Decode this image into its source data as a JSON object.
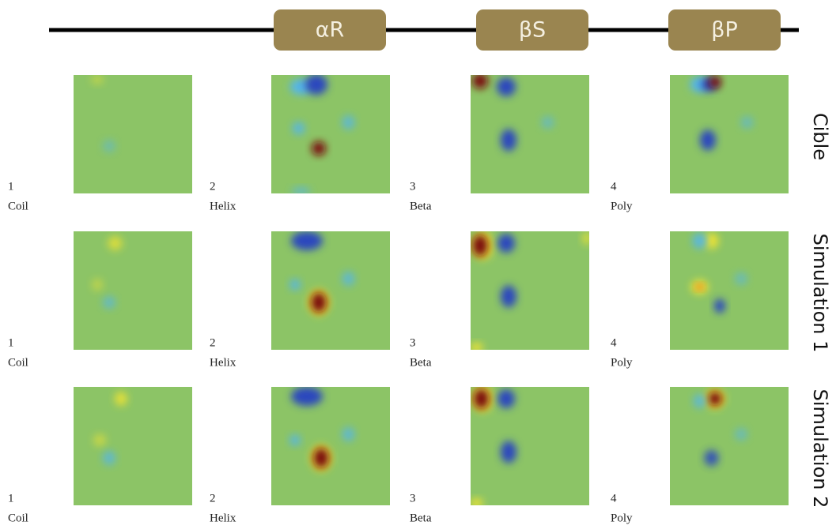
{
  "header": {
    "labels": [
      "αR",
      "βS",
      "βP"
    ]
  },
  "rows": [
    {
      "label": "Cible",
      "panels": [
        {
          "number": 1,
          "name": "Coil"
        },
        {
          "number": 2,
          "name": "Helix"
        },
        {
          "number": 3,
          "name": "Beta"
        },
        {
          "number": 4,
          "name": "Poly"
        }
      ]
    },
    {
      "label": "Simulation 1",
      "panels": [
        {
          "number": 1,
          "name": "Coil"
        },
        {
          "number": 2,
          "name": "Helix"
        },
        {
          "number": 3,
          "name": "Beta"
        },
        {
          "number": 4,
          "name": "Poly"
        }
      ]
    },
    {
      "label": "Simulation 2",
      "panels": [
        {
          "number": 1,
          "name": "Coil"
        },
        {
          "number": 2,
          "name": "Helix"
        },
        {
          "number": 3,
          "name": "Beta"
        },
        {
          "number": 4,
          "name": "Poly"
        }
      ]
    }
  ]
}
